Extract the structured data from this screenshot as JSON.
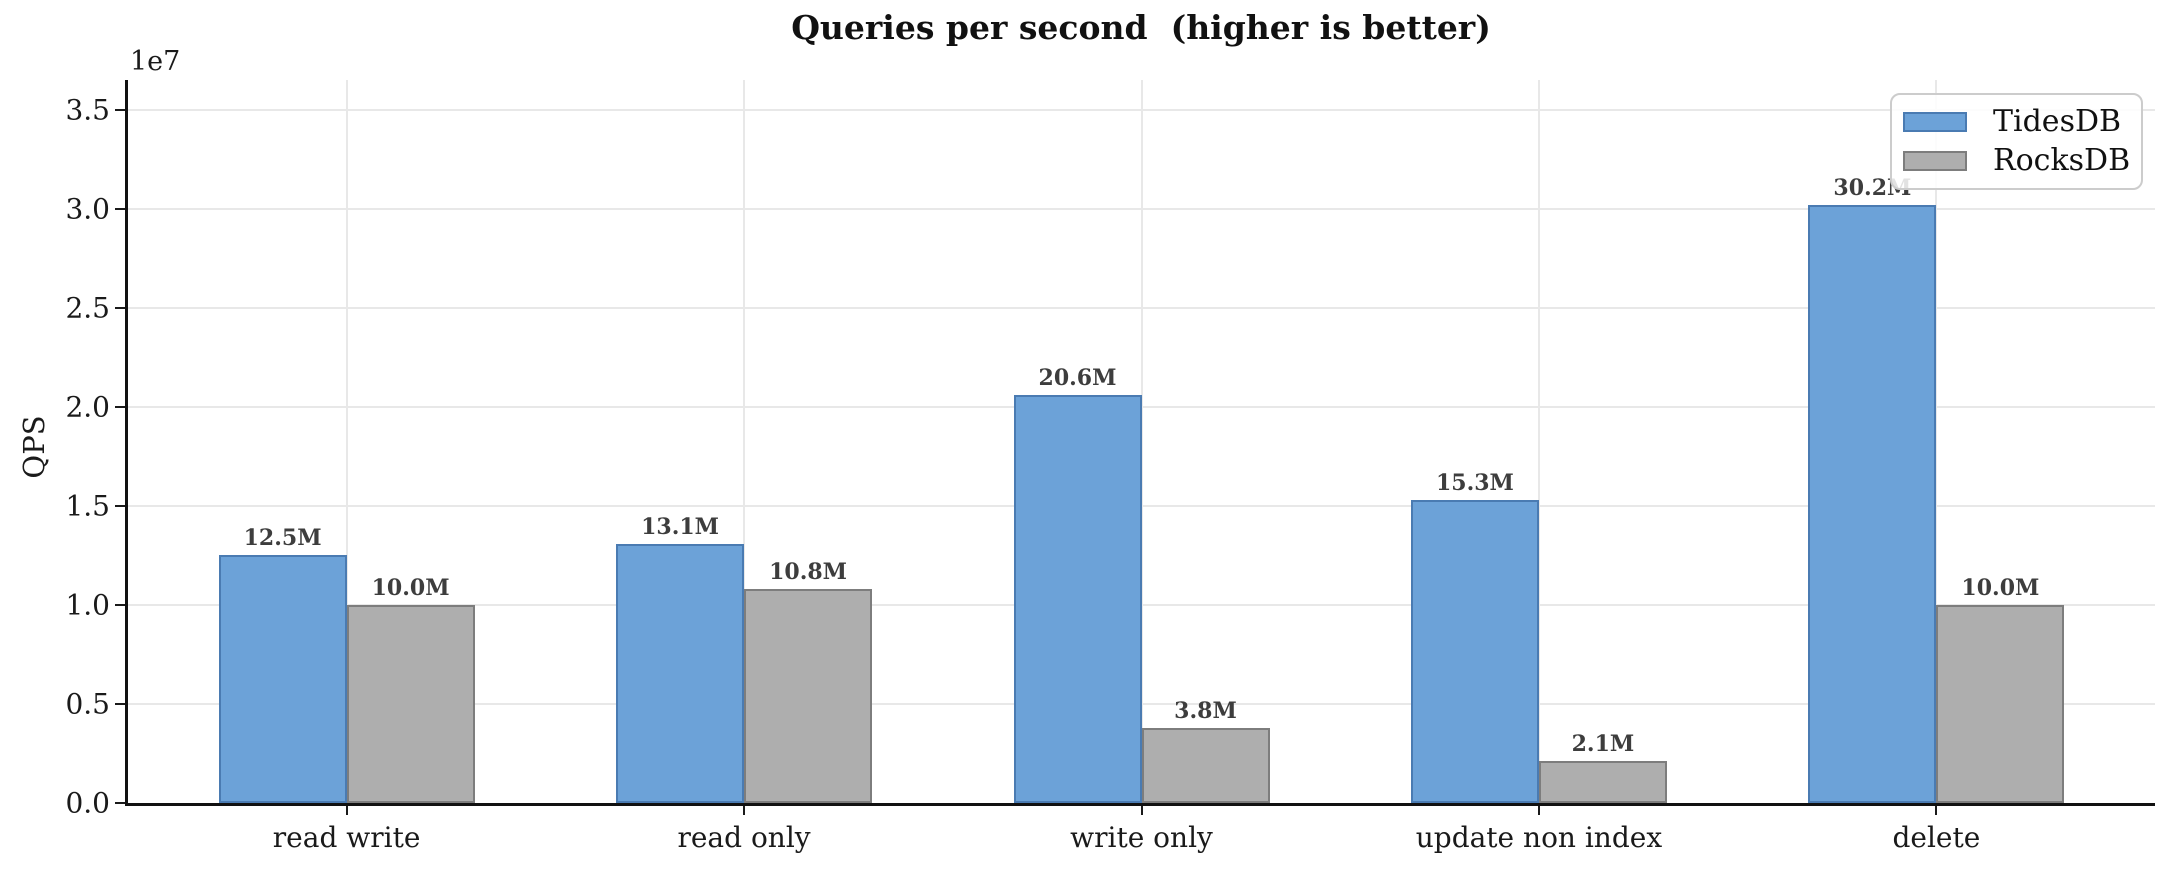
{
  "figure": {
    "title": "Queries per second  (higher is better)"
  },
  "chart_data": {
    "type": "bar",
    "title": "Queries per second  (higher is better)",
    "xlabel": "",
    "ylabel": "QPS",
    "y_offset_label": "1e7",
    "categories": [
      "read write",
      "read only",
      "write only",
      "update non index",
      "delete"
    ],
    "series": [
      {
        "name": "TidesDB",
        "color": "#6ca2d8",
        "edge_color": "#4a7bb2",
        "values": [
          12500000,
          13100000,
          20600000,
          15300000,
          30200000
        ],
        "bar_labels": [
          "12.5M",
          "13.1M",
          "20.6M",
          "15.3M",
          "30.2M"
        ]
      },
      {
        "name": "RocksDB",
        "color": "#aeaeae",
        "edge_color": "#7d7d7d",
        "values": [
          10000000,
          10800000,
          3800000,
          2100000,
          10000000
        ],
        "bar_labels": [
          "10.0M",
          "10.8M",
          "3.8M",
          "2.1M",
          "10.0M"
        ]
      }
    ],
    "ylim": [
      0,
      36500000
    ],
    "yticks": [
      0,
      5000000,
      10000000,
      15000000,
      20000000,
      25000000,
      30000000,
      35000000
    ],
    "ytick_labels": [
      "0.0",
      "0.5",
      "1.0",
      "1.5",
      "2.0",
      "2.5",
      "3.0",
      "3.5"
    ],
    "grid": true,
    "legend_position": "upper right"
  },
  "colors": {
    "grid": "#e8e8e8",
    "axis": "#111111",
    "tick_text": "#1a1a1a",
    "bar_label_text": "#3d3d3d",
    "legend_border": "#cccccc",
    "background": "#ffffff"
  }
}
